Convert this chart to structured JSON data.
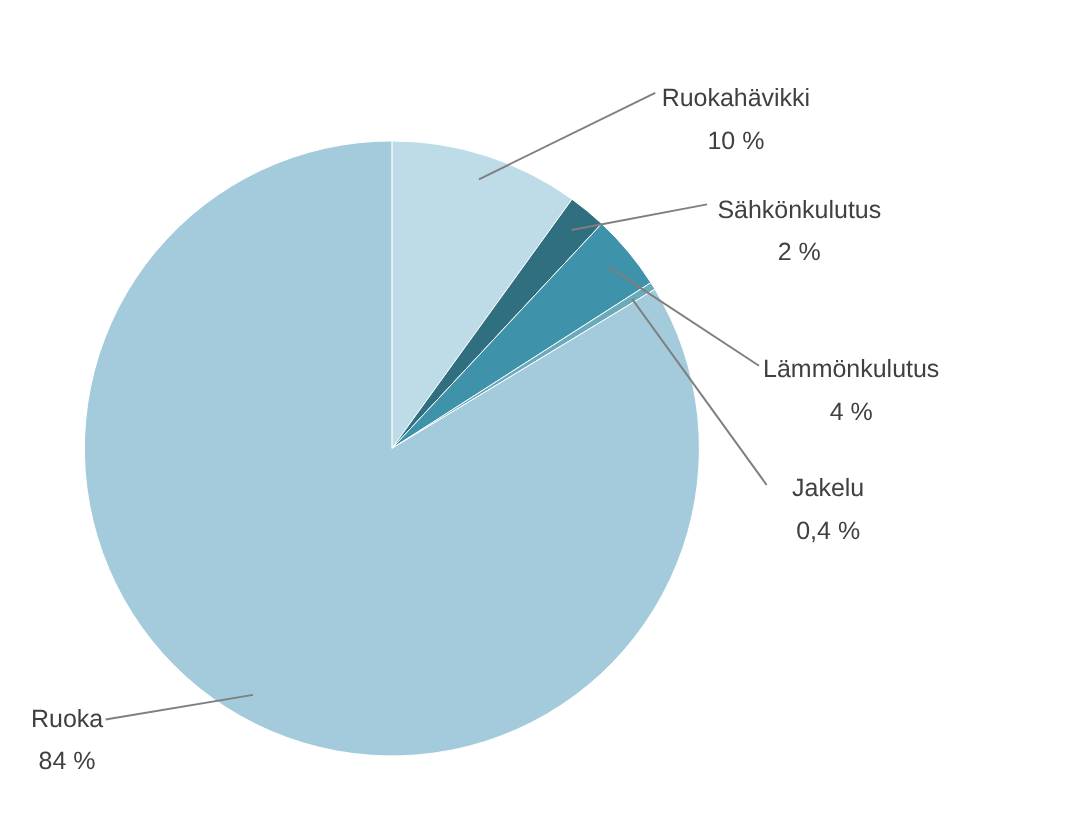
{
  "chart_data": {
    "type": "pie",
    "categories": [
      "Ruokahävikki",
      "Sähkönkulutus",
      "Lämmönkulutus",
      "Jakelu",
      "Ruoka"
    ],
    "values": [
      10,
      2,
      4,
      0.4,
      84
    ],
    "value_labels": [
      "10 %",
      "2 %",
      "4 %",
      "0,4 %",
      "84 %"
    ],
    "colors": [
      "#bddce7",
      "#2f6f80",
      "#3e93aa",
      "#6aaabb",
      "#a3cbdc"
    ]
  }
}
